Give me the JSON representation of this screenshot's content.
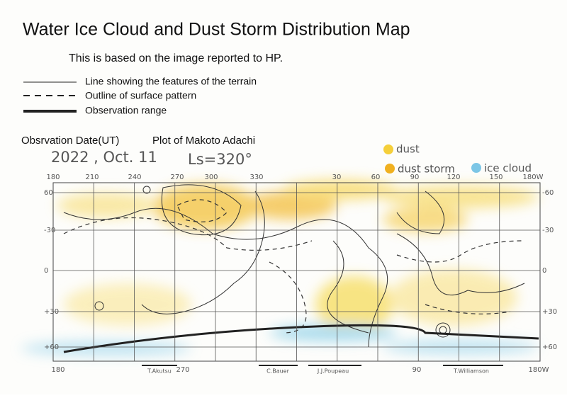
{
  "header": {
    "title": "Water Ice Cloud and Dust Storm Distribution Map",
    "subtitle": "This is based on the image reported to HP."
  },
  "line_legend": [
    "Line showing the features of the terrain",
    "Outline of surface pattern",
    "Observation range"
  ],
  "observation": {
    "date_label": "Obsrvation Date(UT)",
    "plot_label": "Plot of Makoto Adachi",
    "date": "2022 , Oct. 11",
    "ls": "Ls=320°"
  },
  "color_key": [
    "dust",
    "dust storm",
    "ice cloud"
  ],
  "map": {
    "top_labels": [
      "180",
      "210",
      "240",
      "270",
      "300",
      "330",
      "30",
      "60",
      "90",
      "120",
      "150",
      "180W"
    ],
    "left_labels": [
      "60",
      "-30",
      "0",
      "+30",
      "+60"
    ],
    "right_labels": [
      "-60",
      "-30",
      "0",
      "+30",
      "+60"
    ],
    "bottom_labels": [
      "180",
      "270",
      "90",
      "180W"
    ],
    "observers": [
      "T.Akutsu",
      "C.Bauer",
      "J.J.Poupeau",
      "T.Williamson"
    ]
  }
}
